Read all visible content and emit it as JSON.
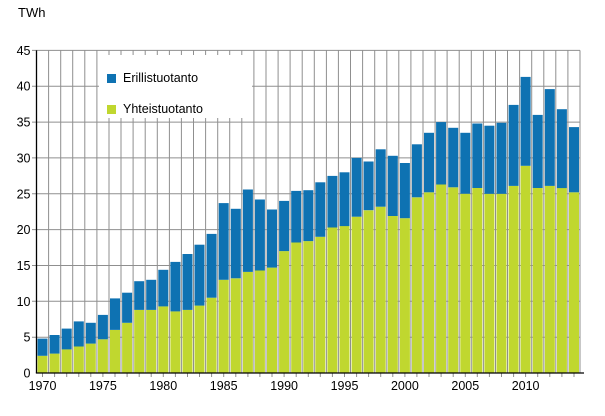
{
  "chart_data": {
    "type": "bar",
    "stacked": true,
    "unit_label": "TWh",
    "x": [
      1970,
      1971,
      1972,
      1973,
      1974,
      1975,
      1976,
      1977,
      1978,
      1979,
      1980,
      1981,
      1982,
      1983,
      1984,
      1985,
      1986,
      1987,
      1988,
      1989,
      1990,
      1991,
      1992,
      1993,
      1994,
      1995,
      1996,
      1997,
      1998,
      1999,
      2000,
      2001,
      2002,
      2003,
      2004,
      2005,
      2006,
      2007,
      2008,
      2009,
      2010,
      2011,
      2012,
      2013,
      2014
    ],
    "series": [
      {
        "name": "Erillistuotanto",
        "color": "#0e72b2",
        "values": [
          2.4,
          2.6,
          2.9,
          3.5,
          2.9,
          3.4,
          4.4,
          4.2,
          4.0,
          4.2,
          5.1,
          6.9,
          7.8,
          8.5,
          8.9,
          10.7,
          9.7,
          11.5,
          9.9,
          8.1,
          7.0,
          7.2,
          7.1,
          7.6,
          7.2,
          7.5,
          8.2,
          6.8,
          8.0,
          8.4,
          7.7,
          7.4,
          8.3,
          8.7,
          8.3,
          8.5,
          9.0,
          9.5,
          9.9,
          11.3,
          12.4,
          10.2,
          13.5,
          11.0,
          9.1
        ]
      },
      {
        "name": "Yhteistuotanto",
        "color": "#c0d72f",
        "values": [
          2.4,
          2.7,
          3.3,
          3.7,
          4.1,
          4.7,
          6.0,
          7.0,
          8.8,
          8.8,
          9.3,
          8.6,
          8.8,
          9.4,
          10.5,
          13.0,
          13.2,
          14.1,
          14.3,
          14.7,
          17.0,
          18.2,
          18.4,
          19.0,
          20.3,
          20.5,
          21.8,
          22.7,
          23.2,
          21.9,
          21.6,
          24.5,
          25.2,
          26.3,
          25.9,
          25.0,
          25.8,
          25.0,
          25.0,
          26.1,
          28.9,
          25.8,
          26.1,
          25.8,
          25.2
        ]
      }
    ],
    "stack_order": [
      1,
      0
    ],
    "ylim": [
      0,
      45
    ],
    "ytick_step": 5,
    "yticks": [
      0,
      5,
      10,
      15,
      20,
      25,
      30,
      35,
      40,
      45
    ],
    "xticks": [
      1970,
      1975,
      1980,
      1985,
      1990,
      1995,
      2000,
      2005,
      2010
    ],
    "grid": "both",
    "legend_position": "upper-left-inside",
    "colors": {
      "gridline": "#8f8f8f",
      "axis": "#000000",
      "text": "#000000",
      "background": "#ffffff"
    }
  }
}
